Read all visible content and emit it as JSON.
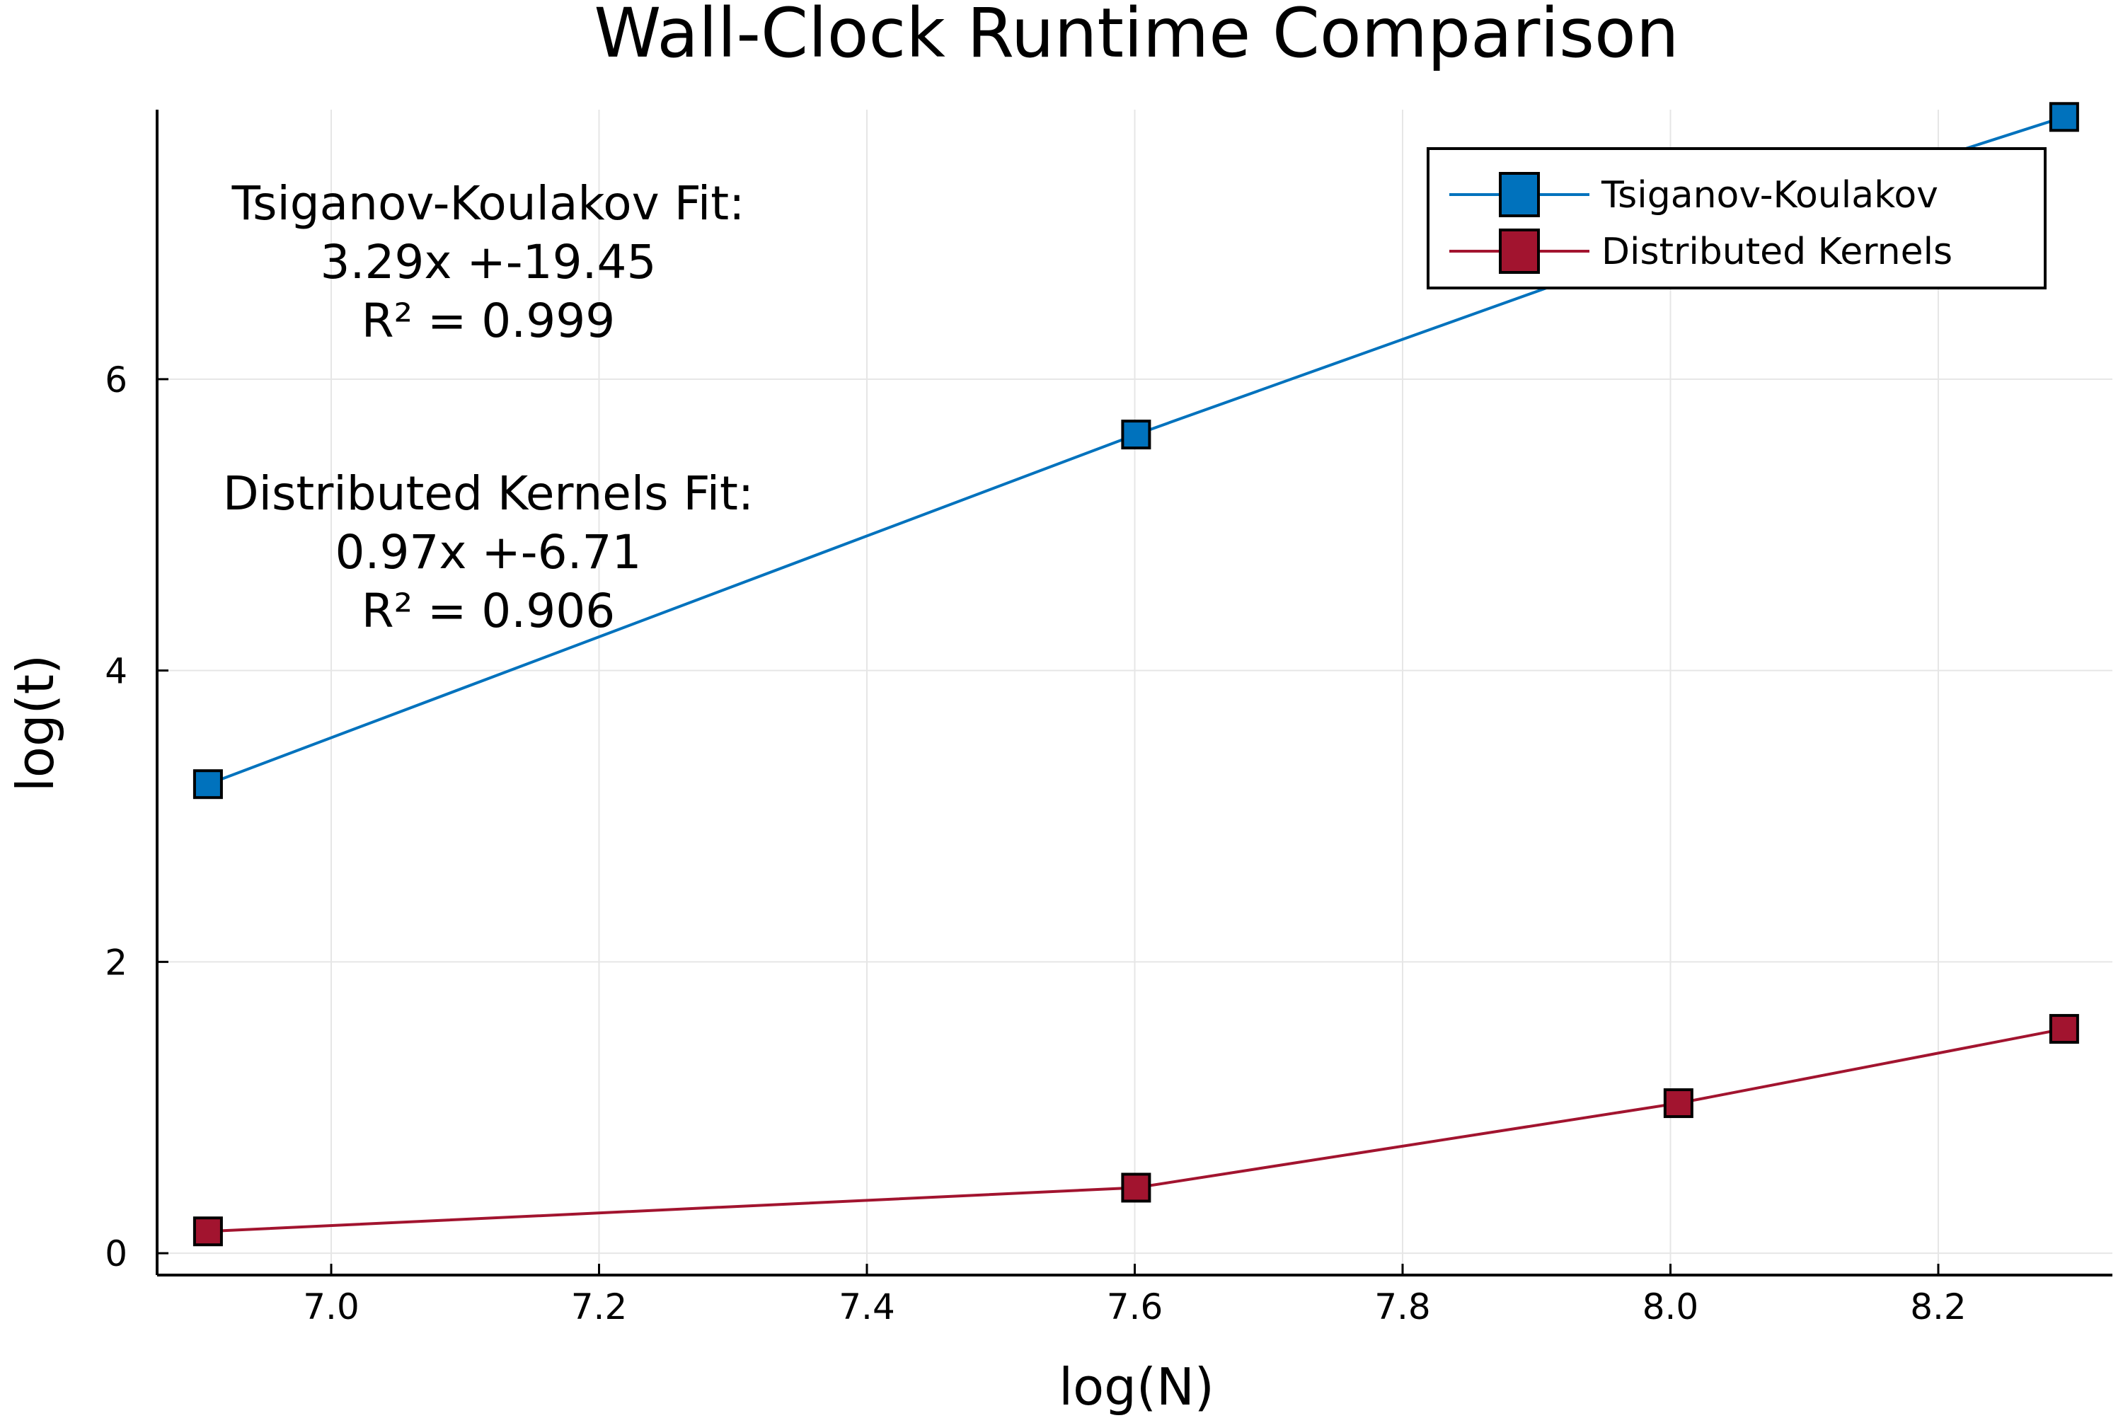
{
  "chart_data": {
    "type": "line",
    "title": "Wall-Clock Runtime Comparison",
    "xlabel": "log(N)",
    "ylabel": "log(t)",
    "xlim": [
      6.87,
      8.33
    ],
    "ylim": [
      -0.15,
      7.85
    ],
    "xticks": [
      7.0,
      7.2,
      7.4,
      7.6,
      7.8,
      8.0,
      8.2
    ],
    "xtick_labels": [
      "7.0",
      "7.2",
      "7.4",
      "7.6",
      "7.8",
      "8.0",
      "8.2"
    ],
    "yticks": [
      0,
      2,
      4,
      6
    ],
    "ytick_labels": [
      "0",
      "2",
      "4",
      "6"
    ],
    "grid": true,
    "legend_position": "top-right",
    "series": [
      {
        "name": "Tsiganov-Koulakov",
        "color": "#0072bd",
        "marker": "square",
        "x": [
          6.908,
          7.601,
          8.006,
          8.294
        ],
        "y": [
          3.22,
          5.62,
          6.95,
          7.8
        ]
      },
      {
        "name": "Distributed Kernels",
        "color": "#a2142f",
        "marker": "square",
        "x": [
          6.908,
          7.601,
          8.006,
          8.294
        ],
        "y": [
          0.15,
          0.45,
          1.03,
          1.54
        ]
      }
    ],
    "annotations": [
      {
        "lines": [
          "Tsiganov-Koulakov Fit:",
          "3.29x +-19.45",
          "R² = 0.999"
        ]
      },
      {
        "lines": [
          "Distributed Kernels Fit:",
          "0.97x +-6.71",
          "R² = 0.906"
        ]
      }
    ]
  }
}
